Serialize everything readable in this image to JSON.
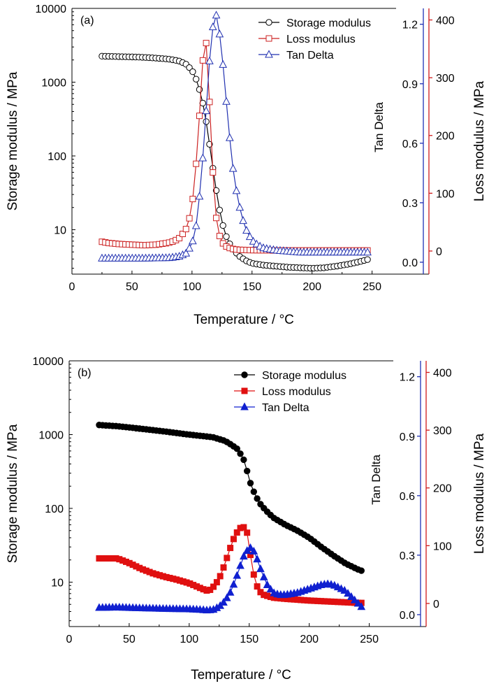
{
  "chart_data": [
    {
      "type": "line",
      "panel_label": "(a)",
      "xlabel": "Temperature / °C",
      "xlim": [
        0,
        270
      ],
      "xticks": [
        0,
        50,
        100,
        150,
        200,
        250
      ],
      "ylabel_left": "Storage modulus / MPa",
      "ylim_left": [
        2.5,
        10000
      ],
      "yscale_left": "log",
      "yticks_left": [
        10,
        100,
        1000,
        10000
      ],
      "ylabel_tan": "Tan Delta",
      "ylim_tan": [
        -0.06,
        1.28
      ],
      "yticks_tan": [
        0.0,
        0.3,
        0.6,
        0.9,
        1.2
      ],
      "ylabel_loss": "Loss modulus / MPa",
      "ylim_loss": [
        -40,
        420
      ],
      "yticks_loss": [
        0,
        100,
        200,
        300,
        400
      ],
      "legend_position": "top-right",
      "marker_style": "open",
      "series": [
        {
          "name": "Storage modulus",
          "axis": "left",
          "color": "#000000",
          "marker": "circle",
          "x": [
            25,
            30,
            40,
            50,
            60,
            70,
            80,
            85,
            90,
            95,
            100,
            103,
            106,
            109,
            112,
            115,
            118,
            121,
            124,
            127,
            130,
            135,
            140,
            145,
            150,
            160,
            170,
            180,
            190,
            200,
            210,
            220,
            230,
            240,
            245,
            248
          ],
          "y": [
            2250,
            2240,
            2220,
            2200,
            2170,
            2120,
            2060,
            2000,
            1920,
            1750,
            1450,
            1150,
            820,
            520,
            280,
            130,
            58,
            28,
            15,
            9.5,
            7,
            5.2,
            4.3,
            3.8,
            3.5,
            3.3,
            3.2,
            3.1,
            3.05,
            3.0,
            3.05,
            3.2,
            3.4,
            3.7,
            3.9,
            4.0
          ]
        },
        {
          "name": "Loss modulus",
          "axis": "loss",
          "color": "#cc2222",
          "marker": "square",
          "x": [
            25,
            30,
            40,
            50,
            60,
            70,
            80,
            85,
            90,
            95,
            98,
            101,
            103,
            105,
            107,
            109,
            111,
            113,
            115,
            117,
            119,
            121,
            124,
            127,
            130,
            135,
            140,
            150,
            170,
            200,
            230,
            248
          ],
          "y": [
            16,
            14,
            12,
            11,
            10,
            11,
            14,
            17,
            23,
            38,
            58,
            95,
            140,
            195,
            260,
            330,
            380,
            330,
            240,
            150,
            80,
            42,
            18,
            10,
            6,
            3,
            2,
            1.5,
            1,
            1,
            1,
            1
          ]
        },
        {
          "name": "Tan Delta",
          "axis": "tan",
          "color": "#2030b0",
          "marker": "triangle",
          "x": [
            25,
            30,
            40,
            50,
            60,
            70,
            80,
            85,
            90,
            95,
            100,
            104,
            108,
            112,
            115,
            118,
            120,
            122,
            125,
            128,
            131,
            134,
            137,
            140,
            143,
            146,
            150,
            155,
            160,
            170,
            180,
            190,
            200,
            210,
            220,
            230,
            240,
            248
          ],
          "y": [
            0.02,
            0.02,
            0.02,
            0.02,
            0.02,
            0.021,
            0.022,
            0.025,
            0.03,
            0.045,
            0.09,
            0.2,
            0.44,
            0.78,
            1.05,
            1.22,
            1.25,
            1.2,
            1.05,
            0.85,
            0.65,
            0.48,
            0.36,
            0.27,
            0.2,
            0.15,
            0.11,
            0.085,
            0.07,
            0.06,
            0.055,
            0.05,
            0.05,
            0.05,
            0.05,
            0.05,
            0.05,
            0.05
          ]
        }
      ]
    },
    {
      "type": "line",
      "panel_label": "(b)",
      "xlabel": "Temperature / °C",
      "xlim": [
        0,
        270
      ],
      "xticks": [
        0,
        50,
        100,
        150,
        200,
        250
      ],
      "ylabel_left": "Storage modulus / MPa",
      "ylim_left": [
        2.5,
        10000
      ],
      "yscale_left": "log",
      "yticks_left": [
        10,
        100,
        1000,
        10000
      ],
      "ylabel_tan": "Tan Delta",
      "ylim_tan": [
        -0.06,
        1.28
      ],
      "yticks_tan": [
        0.0,
        0.3,
        0.6,
        0.9,
        1.2
      ],
      "ylabel_loss": "Loss modulus / MPa",
      "ylim_loss": [
        -40,
        420
      ],
      "yticks_loss": [
        0,
        100,
        200,
        300,
        400
      ],
      "legend_position": "top-right",
      "marker_style": "filled",
      "series": [
        {
          "name": "Storage modulus",
          "axis": "left",
          "color": "#000000",
          "marker": "circle",
          "x": [
            25,
            40,
            60,
            80,
            100,
            110,
            120,
            130,
            135,
            140,
            145,
            148,
            151,
            155,
            160,
            165,
            170,
            180,
            190,
            200,
            210,
            220,
            230,
            240,
            245
          ],
          "y": [
            1350,
            1300,
            1200,
            1100,
            1000,
            960,
            920,
            820,
            730,
            640,
            480,
            330,
            220,
            150,
            110,
            90,
            75,
            60,
            50,
            40,
            30,
            23,
            18,
            15,
            14
          ]
        },
        {
          "name": "Loss modulus",
          "axis": "loss",
          "color": "#e01010",
          "marker": "square",
          "x": [
            25,
            30,
            40,
            50,
            60,
            70,
            80,
            90,
            100,
            110,
            115,
            118,
            122,
            126,
            130,
            134,
            138,
            142,
            145,
            148,
            150,
            152,
            155,
            158,
            162,
            170,
            180,
            200,
            220,
            240,
            245
          ],
          "y": [
            78,
            78,
            78,
            70,
            60,
            52,
            46,
            41,
            35,
            26,
            22,
            24,
            33,
            48,
            70,
            95,
            117,
            130,
            133,
            125,
            100,
            68,
            38,
            22,
            15,
            10,
            8,
            5,
            3,
            1,
            1
          ]
        },
        {
          "name": "Tan Delta",
          "axis": "tan",
          "color": "#1020d0",
          "marker": "triangle",
          "x": [
            25,
            40,
            60,
            80,
            100,
            110,
            115,
            120,
            125,
            130,
            135,
            140,
            145,
            150,
            153,
            156,
            160,
            165,
            170,
            175,
            180,
            190,
            200,
            210,
            215,
            220,
            230,
            240,
            245
          ],
          "y": [
            0.035,
            0.037,
            0.033,
            0.03,
            0.028,
            0.025,
            0.022,
            0.025,
            0.04,
            0.07,
            0.12,
            0.2,
            0.29,
            0.34,
            0.33,
            0.29,
            0.22,
            0.15,
            0.11,
            0.1,
            0.1,
            0.11,
            0.13,
            0.15,
            0.155,
            0.15,
            0.12,
            0.06,
            0.03
          ]
        }
      ]
    }
  ]
}
